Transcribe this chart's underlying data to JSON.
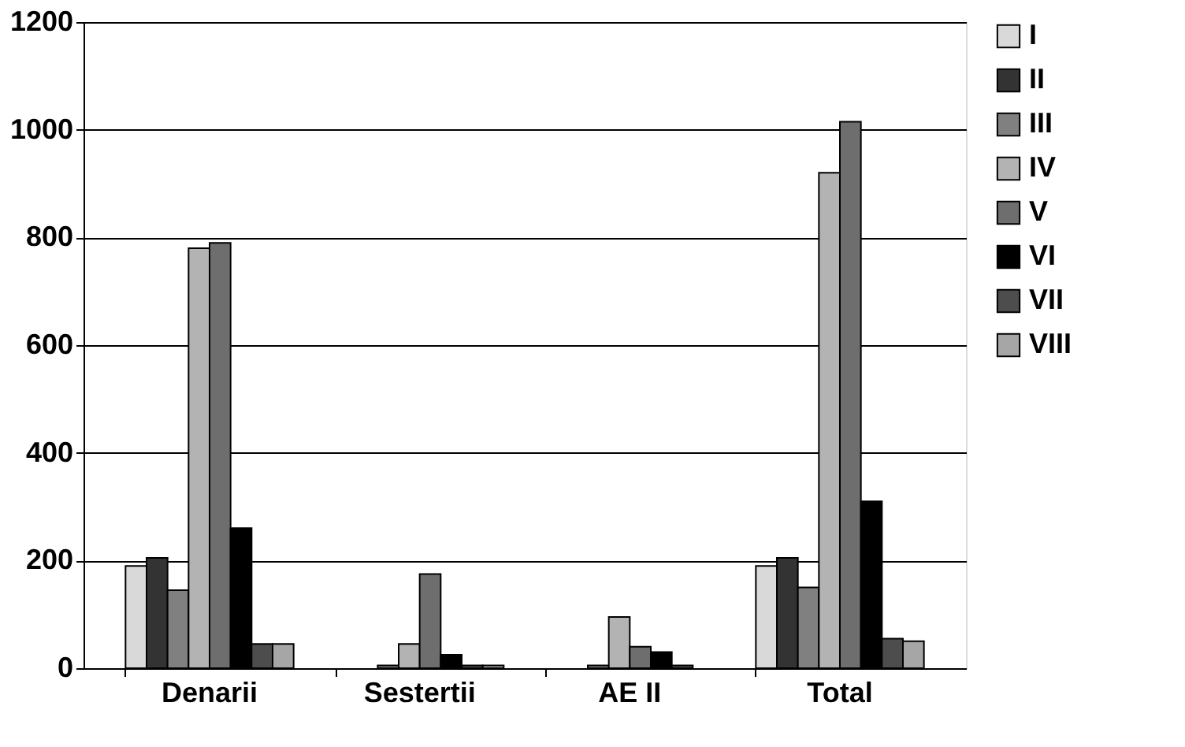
{
  "chart_data": {
    "type": "bar",
    "categories": [
      "Denarii",
      "Sestertii",
      "AE II",
      "Total"
    ],
    "series": [
      {
        "name": "I",
        "color": "#d9d9d9",
        "values": [
          190,
          0,
          0,
          190
        ]
      },
      {
        "name": "II",
        "color": "#333333",
        "values": [
          205,
          0,
          0,
          205
        ]
      },
      {
        "name": "III",
        "color": "#808080",
        "values": [
          145,
          5,
          5,
          150
        ]
      },
      {
        "name": "IV",
        "color": "#b3b3b3",
        "values": [
          780,
          45,
          95,
          920
        ]
      },
      {
        "name": "V",
        "color": "#6e6e6e",
        "values": [
          790,
          175,
          40,
          1015
        ]
      },
      {
        "name": "VI",
        "color": "#000000",
        "values": [
          260,
          25,
          30,
          310
        ]
      },
      {
        "name": "VII",
        "color": "#4d4d4d",
        "values": [
          45,
          5,
          5,
          55
        ]
      },
      {
        "name": "VIII",
        "color": "#a6a6a6",
        "values": [
          45,
          5,
          0,
          50
        ]
      }
    ],
    "ylim": [
      0,
      1200
    ],
    "yticks": [
      0,
      200,
      400,
      600,
      800,
      1000,
      1200
    ],
    "grid": "y",
    "legend": "right"
  }
}
